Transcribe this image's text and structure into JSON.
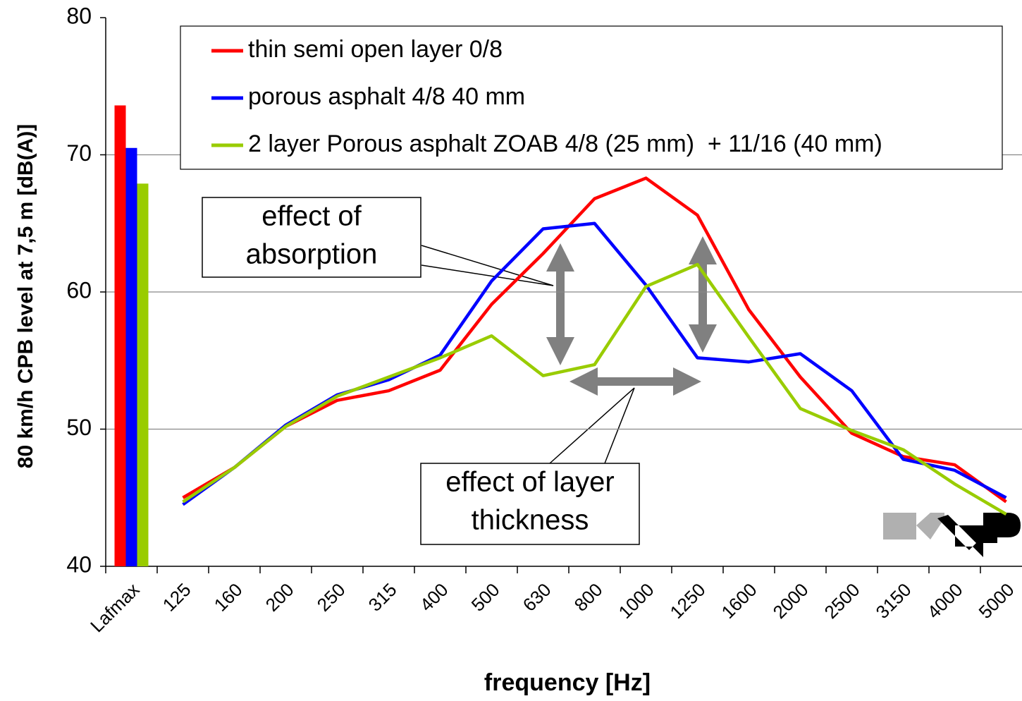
{
  "chart_data": {
    "type": "line",
    "ylabel": "80 km/h CPB level at 7,5 m [dB(A)]",
    "xlabel": "frequency [Hz]",
    "categories": [
      "Lafmax",
      "125",
      "160",
      "200",
      "250",
      "315",
      "400",
      "500",
      "630",
      "800",
      "1000",
      "1250",
      "1600",
      "2000",
      "2500",
      "3150",
      "4000",
      "5000"
    ],
    "series": [
      {
        "name": "thin semi open layer 0/8",
        "color": "#ff0000",
        "values": [
          73.6,
          45.0,
          47.2,
          50.2,
          52.1,
          52.8,
          54.3,
          59.1,
          62.8,
          66.8,
          68.3,
          65.6,
          58.7,
          53.8,
          49.7,
          48.0,
          47.4,
          44.7
        ]
      },
      {
        "name": "porous asphalt 4/8 40 mm",
        "color": "#0000ff",
        "values": [
          70.5,
          44.5,
          47.2,
          50.3,
          52.5,
          53.6,
          55.4,
          60.8,
          64.6,
          65.0,
          60.5,
          55.2,
          54.9,
          55.5,
          52.8,
          47.8,
          47.0,
          45.0
        ]
      },
      {
        "name": "2 layer Porous asphalt ZOAB 4/8 (25 mm)  + 11/16 (40 mm)",
        "color": "#99cc00",
        "values": [
          67.9,
          44.7,
          47.2,
          50.2,
          52.4,
          53.8,
          55.2,
          56.8,
          53.9,
          54.7,
          60.4,
          62.0,
          56.7,
          51.5,
          49.9,
          48.5,
          46.0,
          43.8
        ]
      }
    ],
    "ylim": [
      40,
      80
    ],
    "yticks": [
      40,
      50,
      60,
      70,
      80
    ],
    "grid": true,
    "annotations": [
      [
        "effect of",
        "absorption"
      ],
      [
        "effect of layer",
        "thickness"
      ]
    ]
  }
}
